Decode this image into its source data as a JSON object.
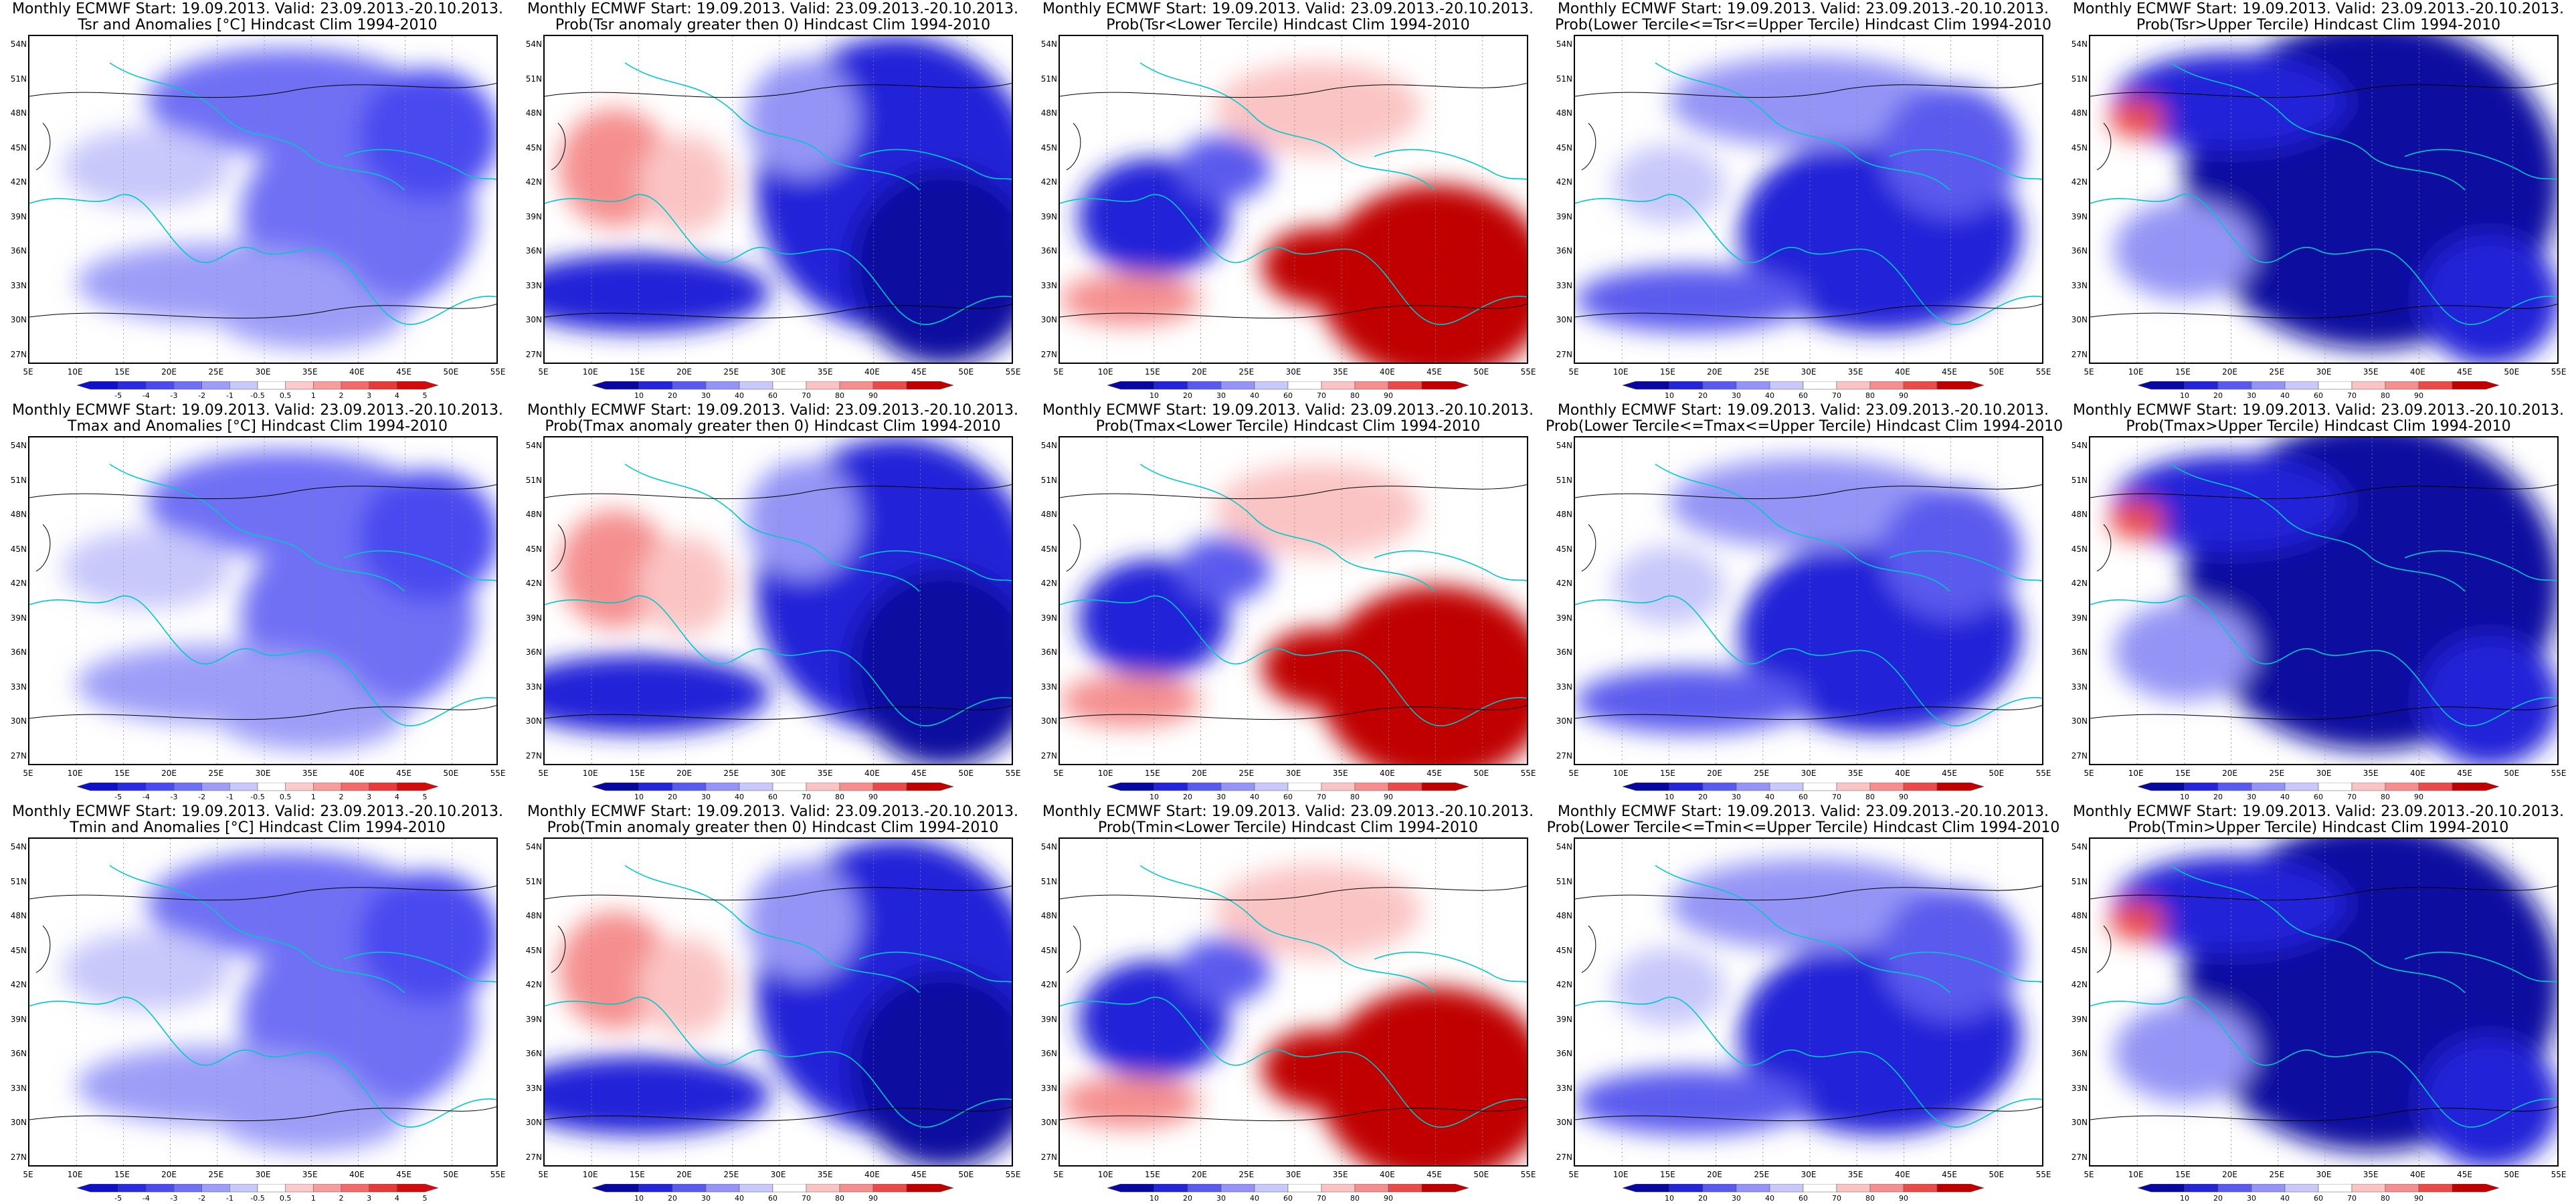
{
  "grid": {
    "lat_labels": [
      "54N",
      "51N",
      "48N",
      "45N",
      "42N",
      "39N",
      "36N",
      "33N",
      "30N",
      "27N"
    ],
    "lon_labels": [
      "5E",
      "10E",
      "15E",
      "20E",
      "25E",
      "30E",
      "35E",
      "40E",
      "45E",
      "50E",
      "55E"
    ]
  },
  "colorbars": {
    "anomaly": {
      "labels": [
        "-5",
        "-4",
        "-3",
        "-2",
        "-1",
        "-0.5",
        "0.5",
        "1",
        "2",
        "3",
        "4",
        "5"
      ],
      "colors": [
        "#1010c8",
        "#2a2ae0",
        "#4a4af0",
        "#7070f5",
        "#9d9df8",
        "#c8c8fb",
        "#ffffff",
        "#fbcaca",
        "#f79d9d",
        "#f26a6a",
        "#e83a3a",
        "#d20c0c"
      ]
    },
    "probability": {
      "labels": [
        "10",
        "20",
        "30",
        "40",
        "60",
        "70",
        "80",
        "90"
      ],
      "colors": [
        "#0808a0",
        "#2424d8",
        "#5a5aee",
        "#9494f6",
        "#c8c8fb",
        "#ffffff",
        "#fbc4c4",
        "#f58f8f",
        "#ea4a4a",
        "#c00000"
      ]
    }
  },
  "rows": [
    [
      {
        "title1": "Monthly ECMWF Start: 19.09.2013. Valid: 23.09.2013.-20.10.2013.",
        "title2": "Tsr and Anomalies [°C] Hindcast Clim 1994-2010",
        "kind": "anomaly",
        "pattern": "cool"
      },
      {
        "title1": "Monthly ECMWF Start: 19.09.2013. Valid: 23.09.2013.-20.10.2013.",
        "title2": "Prob(Tsr anomaly greater then 0) Hindcast Clim 1994-2010",
        "kind": "probability",
        "pattern": "below"
      },
      {
        "title1": "Monthly ECMWF Start: 19.09.2013. Valid: 23.09.2013.-20.10.2013.",
        "title2": "Prob(Tsr<Lower Tercile) Hindcast Clim 1994-2010",
        "kind": "probability",
        "pattern": "lower"
      },
      {
        "title1": "Monthly ECMWF Start: 19.09.2013. Valid: 23.09.2013.-20.10.2013.",
        "title2": "Prob(Lower Tercile<=Tsr<=Upper Tercile) Hindcast Clim 1994-2010",
        "kind": "probability",
        "pattern": "middle"
      },
      {
        "title1": "Monthly ECMWF Start: 19.09.2013. Valid: 23.09.2013.-20.10.2013.",
        "title2": "Prob(Tsr>Upper Tercile) Hindcast Clim 1994-2010",
        "kind": "probability",
        "pattern": "upper"
      }
    ],
    [
      {
        "title1": "Monthly ECMWF Start: 19.09.2013. Valid: 23.09.2013.-20.10.2013.",
        "title2": "Tmax and Anomalies [°C] Hindcast Clim 1994-2010",
        "kind": "anomaly",
        "pattern": "cool"
      },
      {
        "title1": "Monthly ECMWF Start: 19.09.2013. Valid: 23.09.2013.-20.10.2013.",
        "title2": "Prob(Tmax anomaly greater then 0) Hindcast Clim 1994-2010",
        "kind": "probability",
        "pattern": "below"
      },
      {
        "title1": "Monthly ECMWF Start: 19.09.2013. Valid: 23.09.2013.-20.10.2013.",
        "title2": "Prob(Tmax<Lower Tercile) Hindcast Clim 1994-2010",
        "kind": "probability",
        "pattern": "lower"
      },
      {
        "title1": "Monthly ECMWF Start: 19.09.2013. Valid: 23.09.2013.-20.10.2013.",
        "title2": "Prob(Lower Tercile<=Tmax<=Upper Tercile) Hindcast Clim 1994-2010",
        "kind": "probability",
        "pattern": "middle"
      },
      {
        "title1": "Monthly ECMWF Start: 19.09.2013. Valid: 23.09.2013.-20.10.2013.",
        "title2": "Prob(Tmax>Upper Tercile) Hindcast Clim 1994-2010",
        "kind": "probability",
        "pattern": "upper"
      }
    ],
    [
      {
        "title1": "Monthly ECMWF Start: 19.09.2013. Valid: 23.09.2013.-20.10.2013.",
        "title2": "Tmin and Anomalies [°C] Hindcast Clim 1994-2010",
        "kind": "anomaly",
        "pattern": "cool"
      },
      {
        "title1": "Monthly ECMWF Start: 19.09.2013. Valid: 23.09.2013.-20.10.2013.",
        "title2": "Prob(Tmin anomaly greater then 0) Hindcast Clim 1994-2010",
        "kind": "probability",
        "pattern": "below"
      },
      {
        "title1": "Monthly ECMWF Start: 19.09.2013. Valid: 23.09.2013.-20.10.2013.",
        "title2": "Prob(Tmin<Lower Tercile) Hindcast Clim 1994-2010",
        "kind": "probability",
        "pattern": "lower"
      },
      {
        "title1": "Monthly ECMWF Start: 19.09.2013. Valid: 23.09.2013.-20.10.2013.",
        "title2": "Prob(Lower Tercile<=Tmin<=Upper Tercile) Hindcast Clim 1994-2010",
        "kind": "probability",
        "pattern": "middle"
      },
      {
        "title1": "Monthly ECMWF Start: 19.09.2013. Valid: 23.09.2013.-20.10.2013.",
        "title2": "Prob(Tmin>Upper Tercile) Hindcast Clim 1994-2010",
        "kind": "probability",
        "pattern": "upper"
      }
    ]
  ],
  "style": {
    "coastline_color": "#00c8c8",
    "contour_color": "#000000"
  }
}
